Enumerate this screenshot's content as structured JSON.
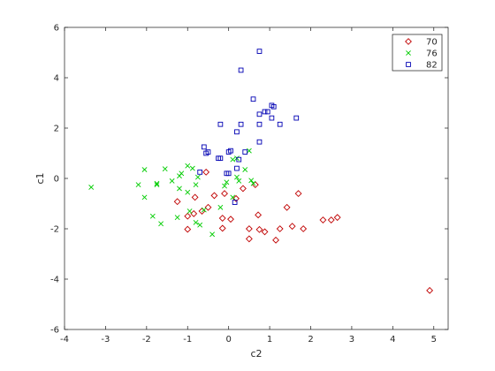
{
  "chart_data": {
    "type": "scatter",
    "title": "",
    "xlabel": "c2",
    "ylabel": "c1",
    "xlim": [
      -4,
      5.35
    ],
    "ylim": [
      -6,
      6
    ],
    "xticks": [
      "-4",
      "-3",
      "-2",
      "-1",
      "0",
      "1",
      "2",
      "3",
      "4",
      "5"
    ],
    "yticks": [
      "-6",
      "-4",
      "-2",
      "0",
      "2",
      "4",
      "6"
    ],
    "grid": false,
    "legend_position": "top-right",
    "series": [
      {
        "name": "70",
        "marker": "diamond",
        "color": "#c00000",
        "points": [
          [
            -0.55,
            0.25
          ],
          [
            -1.25,
            -0.92
          ],
          [
            -0.82,
            -0.75
          ],
          [
            -0.35,
            -0.68
          ],
          [
            -0.1,
            -0.6
          ],
          [
            0.18,
            -0.8
          ],
          [
            0.35,
            -0.4
          ],
          [
            0.65,
            -0.25
          ],
          [
            -0.5,
            -1.15
          ],
          [
            -0.85,
            -1.4
          ],
          [
            -1.0,
            -1.5
          ],
          [
            -0.65,
            -1.3
          ],
          [
            -0.15,
            -1.58
          ],
          [
            0.05,
            -1.62
          ],
          [
            0.72,
            -1.45
          ],
          [
            -1.0,
            -2.02
          ],
          [
            -0.15,
            -1.98
          ],
          [
            0.5,
            -2.0
          ],
          [
            0.75,
            -2.03
          ],
          [
            0.88,
            -2.12
          ],
          [
            0.5,
            -2.4
          ],
          [
            1.25,
            -2.0
          ],
          [
            1.15,
            -2.45
          ],
          [
            1.55,
            -1.9
          ],
          [
            1.82,
            -2.0
          ],
          [
            1.42,
            -1.15
          ],
          [
            1.7,
            -0.6
          ],
          [
            2.3,
            -1.65
          ],
          [
            2.5,
            -1.65
          ],
          [
            2.65,
            -1.55
          ],
          [
            4.9,
            -4.45
          ]
        ]
      },
      {
        "name": "76",
        "marker": "x",
        "color": "#00cc00",
        "points": [
          [
            -3.35,
            -0.35
          ],
          [
            -2.2,
            -0.25
          ],
          [
            -2.05,
            0.35
          ],
          [
            -2.05,
            -0.75
          ],
          [
            -1.75,
            -0.25
          ],
          [
            -1.75,
            -0.2
          ],
          [
            -1.55,
            0.38
          ],
          [
            -1.38,
            -0.1
          ],
          [
            -1.2,
            0.1
          ],
          [
            -1.15,
            0.2
          ],
          [
            -1.0,
            0.5
          ],
          [
            -0.88,
            0.4
          ],
          [
            -0.75,
            0.05
          ],
          [
            -1.2,
            -0.4
          ],
          [
            -1.0,
            -0.55
          ],
          [
            -0.8,
            -0.25
          ],
          [
            -1.25,
            -1.55
          ],
          [
            -0.95,
            -1.3
          ],
          [
            -0.6,
            -1.25
          ],
          [
            -1.85,
            -1.5
          ],
          [
            -1.65,
            -1.8
          ],
          [
            -0.8,
            -1.75
          ],
          [
            -0.7,
            -1.85
          ],
          [
            -0.4,
            -2.22
          ],
          [
            -0.2,
            -1.15
          ],
          [
            0.1,
            -0.75
          ],
          [
            -0.1,
            -0.3
          ],
          [
            0.2,
            0.05
          ],
          [
            0.25,
            -0.1
          ],
          [
            0.5,
            1.1
          ],
          [
            0.55,
            -0.08
          ],
          [
            0.6,
            -0.2
          ],
          [
            0.1,
            0.75
          ],
          [
            -0.05,
            -0.15
          ],
          [
            0.4,
            0.35
          ],
          [
            0.2,
            0.8
          ]
        ]
      },
      {
        "name": "82",
        "marker": "square",
        "color": "#0000b3",
        "points": [
          [
            0.75,
            5.05
          ],
          [
            0.3,
            4.3
          ],
          [
            0.6,
            3.15
          ],
          [
            -0.2,
            2.15
          ],
          [
            0.3,
            2.15
          ],
          [
            0.2,
            1.85
          ],
          [
            0.75,
            2.55
          ],
          [
            0.88,
            2.65
          ],
          [
            0.95,
            2.65
          ],
          [
            1.05,
            2.9
          ],
          [
            1.1,
            2.85
          ],
          [
            1.05,
            2.4
          ],
          [
            1.25,
            2.15
          ],
          [
            0.75,
            2.15
          ],
          [
            1.65,
            2.4
          ],
          [
            0.75,
            1.45
          ],
          [
            -0.6,
            1.25
          ],
          [
            -0.55,
            1.0
          ],
          [
            -0.5,
            1.05
          ],
          [
            0.0,
            1.05
          ],
          [
            0.05,
            1.1
          ],
          [
            -0.25,
            0.8
          ],
          [
            -0.2,
            0.8
          ],
          [
            0.4,
            1.05
          ],
          [
            0.25,
            0.75
          ],
          [
            0.2,
            0.4
          ],
          [
            -0.7,
            0.25
          ],
          [
            -0.05,
            0.2
          ],
          [
            0.0,
            0.2
          ],
          [
            0.15,
            -0.95
          ]
        ]
      }
    ]
  }
}
